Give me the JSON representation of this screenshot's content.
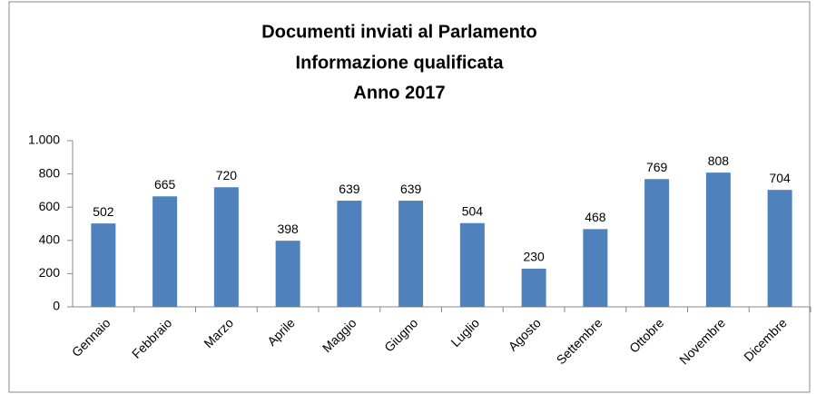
{
  "chart_data": {
    "type": "bar",
    "title": [
      "Documenti inviati al Parlamento",
      "Informazione qualificata",
      "Anno 2017"
    ],
    "categories": [
      "Gennaio",
      "Febbraio",
      "Marzo",
      "Aprile",
      "Maggio",
      "Giugno",
      "Luglio",
      "Agosto",
      "Settembre",
      "Ottobre",
      "Novembre",
      "Dicembre"
    ],
    "values": [
      502,
      665,
      720,
      398,
      639,
      639,
      504,
      230,
      468,
      769,
      808,
      704
    ],
    "color": "#4f81bd",
    "ylim": [
      0,
      1000
    ],
    "yticks": [
      0,
      200,
      400,
      600,
      800,
      {
        "value": 1000,
        "label": "1.000"
      }
    ],
    "grid": false
  }
}
